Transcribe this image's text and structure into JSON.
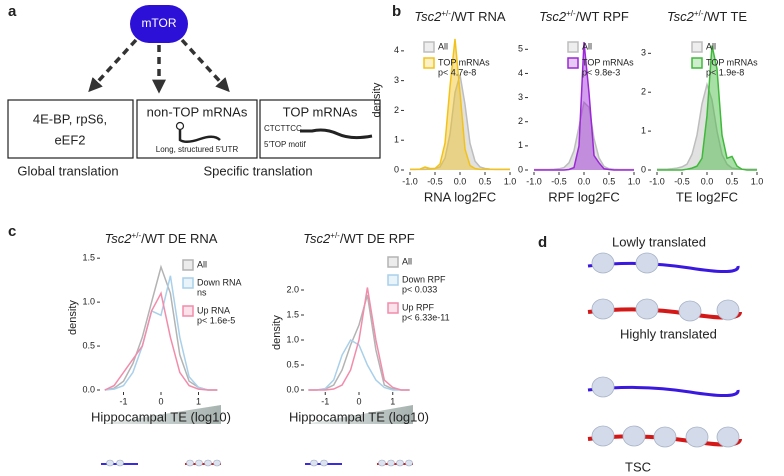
{
  "panel_labels": [
    "a",
    "b",
    "c",
    "d"
  ],
  "diagram_a": {
    "center": "mTOR",
    "boxes": [
      [
        "4E-BP, rpS6,",
        "eEF2"
      ],
      [
        "non-TOP mRNAs",
        "Long, structured 5'UTR"
      ],
      [
        "TOP mRNAs",
        "CTCTTCC",
        "5'TOP motif"
      ]
    ],
    "outcomes": [
      "Global translation",
      "Specific translation"
    ]
  },
  "chart_data": [
    {
      "type": "line",
      "title": [
        "Tsc2",
        "+/-",
        "/WT RNA"
      ],
      "xlabel": "RNA log2FC",
      "ylabel": "density",
      "x": [
        -1.0,
        -0.9,
        -0.8,
        -0.7,
        -0.6,
        -0.5,
        -0.4,
        -0.3,
        -0.2,
        -0.1,
        0.0,
        0.1,
        0.2,
        0.3,
        0.4,
        0.5,
        0.6,
        0.7,
        0.8,
        0.9,
        1.0
      ],
      "xlim": [
        -1.1,
        1.1
      ],
      "xticks": [
        {
          "value": -1,
          "label": "-1.0"
        },
        -0.5,
        {
          "value": 0,
          "label": "0.0"
        },
        0.5,
        {
          "value": 1,
          "label": "1.0"
        }
      ],
      "ylim": [
        0,
        4.7
      ],
      "yticks": [
        0,
        1,
        2,
        3,
        4
      ],
      "fill": true,
      "series": [
        {
          "name": "All",
          "color": "#bdbdbd",
          "values": [
            0.02,
            0.02,
            0.02,
            0.02,
            0.03,
            0.05,
            0.1,
            0.4,
            1.2,
            2.6,
            3.2,
            2.2,
            0.9,
            0.3,
            0.1,
            0.05,
            0.03,
            0.02,
            0.02,
            0.02,
            0.02
          ]
        },
        {
          "name": "TOP mRNAs",
          "note": "p< 4.7e-8",
          "color": "#f2c21b",
          "values": [
            0.02,
            0.02,
            0.03,
            0.1,
            0.05,
            0.05,
            0.2,
            0.9,
            2.8,
            4.4,
            2.6,
            0.7,
            0.15,
            0.05,
            0.02,
            0.02,
            0.02,
            0.02,
            0.02,
            0.02,
            0.02
          ]
        }
      ]
    },
    {
      "type": "line",
      "title": [
        "Tsc2",
        "+/-",
        "/WT RPF"
      ],
      "xlabel": "RPF log2FC",
      "x": [
        -1.0,
        -0.9,
        -0.8,
        -0.7,
        -0.6,
        -0.5,
        -0.4,
        -0.3,
        -0.2,
        -0.1,
        0.0,
        0.1,
        0.2,
        0.3,
        0.4,
        0.5,
        0.6,
        0.7,
        0.8,
        0.9,
        1.0
      ],
      "xlim": [
        -1.1,
        1.1
      ],
      "xticks": [
        {
          "value": -1,
          "label": "-1.0"
        },
        -0.5,
        {
          "value": 0,
          "label": "0.0"
        },
        0.5,
        {
          "value": 1,
          "label": "1.0"
        }
      ],
      "ylim": [
        0,
        5.8
      ],
      "yticks": [
        0,
        1,
        2,
        3,
        4,
        5
      ],
      "fill": true,
      "series": [
        {
          "name": "All",
          "color": "#bdbdbd",
          "values": [
            0.02,
            0.02,
            0.02,
            0.02,
            0.03,
            0.05,
            0.1,
            0.3,
            0.8,
            1.8,
            2.8,
            2.6,
            1.3,
            0.5,
            0.15,
            0.05,
            0.03,
            0.02,
            0.02,
            0.02,
            0.02
          ]
        },
        {
          "name": "TOP mRNAs",
          "note": "p< 9.8e-3",
          "color": "#9b27d6",
          "values": [
            0,
            0,
            0,
            0,
            0,
            0,
            0,
            0.02,
            0.1,
            1.0,
            5.3,
            3.2,
            0.6,
            0.3,
            0.05,
            0.02,
            0,
            0,
            0,
            0,
            0
          ]
        }
      ]
    },
    {
      "type": "line",
      "title": [
        "Tsc2",
        "+/-",
        "/WT TE"
      ],
      "xlabel": "TE log2FC",
      "x": [
        -1.0,
        -0.9,
        -0.8,
        -0.7,
        -0.6,
        -0.5,
        -0.4,
        -0.3,
        -0.2,
        -0.1,
        0.0,
        0.1,
        0.2,
        0.3,
        0.4,
        0.5,
        0.6,
        0.7,
        0.8,
        0.9,
        1.0
      ],
      "xlim": [
        -1.1,
        1.1
      ],
      "xticks": [
        {
          "value": -1,
          "label": "-1.0"
        },
        -0.5,
        {
          "value": 0,
          "label": "0.0"
        },
        0.5,
        {
          "value": 1,
          "label": "1.0"
        }
      ],
      "ylim": [
        0,
        3.6
      ],
      "yticks": [
        0,
        1,
        2,
        3
      ],
      "fill": true,
      "series": [
        {
          "name": "All",
          "color": "#bdbdbd",
          "values": [
            0.02,
            0.02,
            0.02,
            0.03,
            0.05,
            0.08,
            0.15,
            0.4,
            0.9,
            1.7,
            2.2,
            1.8,
            1.0,
            0.4,
            0.15,
            0.05,
            0.03,
            0.02,
            0.02,
            0.02,
            0.02
          ]
        },
        {
          "name": "TOP mRNAs",
          "note": "p< 1.9e-8",
          "color": "#3fb93a",
          "values": [
            0,
            0,
            0,
            0,
            0,
            0,
            0.02,
            0.05,
            0.1,
            0.3,
            1.4,
            3.2,
            2.6,
            0.9,
            0.3,
            0.35,
            0.1,
            0.02,
            0,
            0,
            0
          ]
        }
      ]
    },
    {
      "type": "line",
      "title": [
        "Tsc2",
        "+/-",
        "/WT DE RNA"
      ],
      "xlabel": "Hippocampal TE (log10)",
      "ylabel": "density",
      "x": [
        -1.5,
        -1.25,
        -1.0,
        -0.75,
        -0.5,
        -0.25,
        0.0,
        0.25,
        0.5,
        0.75,
        1.0,
        1.25,
        1.5
      ],
      "xlim": [
        -1.6,
        1.6
      ],
      "xticks": [
        -1,
        0,
        1
      ],
      "ylim": [
        0,
        1.65
      ],
      "yticks": [
        {
          "value": 0,
          "label": "0.0"
        },
        0.5,
        {
          "value": 1,
          "label": "1.0"
        },
        1.5
      ],
      "fill": false,
      "series": [
        {
          "name": "All",
          "color": "#b3b3b3",
          "values": [
            0,
            0.02,
            0.1,
            0.3,
            0.6,
            1.0,
            1.4,
            1.1,
            0.4,
            0.1,
            0.03,
            0,
            0
          ]
        },
        {
          "name": "Down RNA",
          "note": "ns",
          "color": "#a9d0ea",
          "values": [
            0,
            0.01,
            0.05,
            0.2,
            0.5,
            0.9,
            0.85,
            1.3,
            0.6,
            0.15,
            0.03,
            0,
            0
          ]
        },
        {
          "name": "Up RNA",
          "note": "p< 1.6e-5",
          "color": "#f28cab",
          "values": [
            0,
            0.05,
            0.2,
            0.35,
            0.5,
            0.9,
            1.1,
            0.6,
            0.2,
            0.05,
            0.01,
            0,
            0
          ]
        }
      ]
    },
    {
      "type": "line",
      "title": [
        "Tsc2",
        "+/-",
        "/WT DE RPF"
      ],
      "xlabel": "Hippocampal TE (log10)",
      "ylabel": "density",
      "x": [
        -1.5,
        -1.25,
        -1.0,
        -0.75,
        -0.5,
        -0.25,
        0.0,
        0.25,
        0.5,
        0.75,
        1.0,
        1.25,
        1.5
      ],
      "xlim": [
        -1.6,
        1.6
      ],
      "xticks": [
        -1,
        0,
        1
      ],
      "ylim": [
        0,
        2.3
      ],
      "yticks": [
        {
          "value": 0,
          "label": "0.0"
        },
        0.5,
        {
          "value": 1,
          "label": "1.0"
        },
        1.5,
        {
          "value": 2,
          "label": "2.0"
        }
      ],
      "fill": false,
      "series": [
        {
          "name": "All",
          "color": "#b3b3b3",
          "values": [
            0,
            0,
            0.02,
            0.1,
            0.4,
            0.9,
            1.3,
            1.9,
            0.8,
            0.1,
            0.02,
            0,
            0
          ]
        },
        {
          "name": "Down RPF",
          "note": "p< 0.033",
          "color": "#a9d0ea",
          "values": [
            0,
            0,
            0.03,
            0.2,
            0.7,
            1.0,
            0.9,
            0.5,
            0.2,
            0.05,
            0,
            0,
            0
          ]
        },
        {
          "name": "Up RPF",
          "note": "p< 6.33e-11",
          "color": "#f28cab",
          "values": [
            0,
            0,
            0,
            0.02,
            0.1,
            0.4,
            1.0,
            2.05,
            1.0,
            0.2,
            0.05,
            0,
            0
          ]
        }
      ]
    }
  ],
  "diagram_d": {
    "labels": [
      "Lowly translated",
      "Highly translated",
      "TSC"
    ]
  }
}
